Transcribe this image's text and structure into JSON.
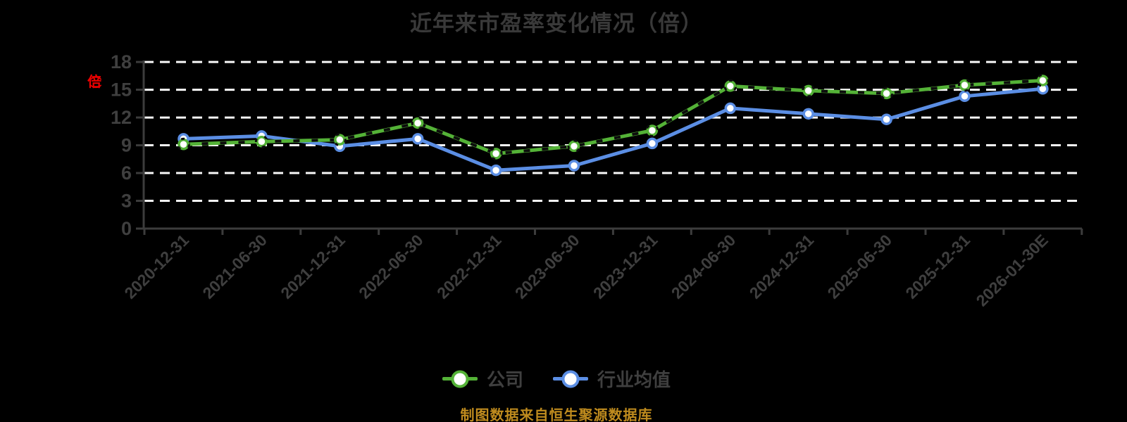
{
  "footer": "制图数据来自恒生聚源数据库",
  "colors": {
    "background": "#000000",
    "company": "#54b237",
    "industry": "#5b8ee4",
    "marker_fill": "#ffffff",
    "overlay_dash": "#0d0d0d",
    "grid": "#f8f8f8",
    "axis": "#3c3c3c",
    "text": "#3f3f3f",
    "title": "#393939",
    "unit": "#ea0000",
    "footer": "#bf8b1e"
  },
  "chart_data": {
    "type": "line",
    "title": "近年来市盈率变化情况（倍）",
    "ylabel": "（倍）",
    "xlabel": "",
    "ylim": [
      0,
      18
    ],
    "yticks": [
      0,
      3,
      6,
      9,
      12,
      15,
      18
    ],
    "grid": "horizontal-dashed-white",
    "legend_position": "bottom-center",
    "categories": [
      "2020-12-31",
      "2021-06-30",
      "2021-12-31",
      "2022-06-30",
      "2022-12-31",
      "2023-06-30",
      "2023-12-31",
      "2024-06-30",
      "2024-12-31",
      "2025-06-30",
      "2025-12-31",
      "2026-01-30E"
    ],
    "series": [
      {
        "name": "公司",
        "color_key": "company",
        "marker": "circle-white-fill",
        "dashed_overlay": true,
        "values": [
          9.1,
          9.4,
          9.6,
          11.4,
          8.1,
          8.9,
          10.6,
          15.4,
          14.9,
          14.6,
          15.5,
          16.0
        ]
      },
      {
        "name": "行业均值",
        "color_key": "industry",
        "marker": "circle-white-fill",
        "dashed_overlay": false,
        "values": [
          9.7,
          10.0,
          8.9,
          9.7,
          6.3,
          6.8,
          9.2,
          13.0,
          12.4,
          11.8,
          14.3,
          15.1
        ]
      }
    ]
  }
}
